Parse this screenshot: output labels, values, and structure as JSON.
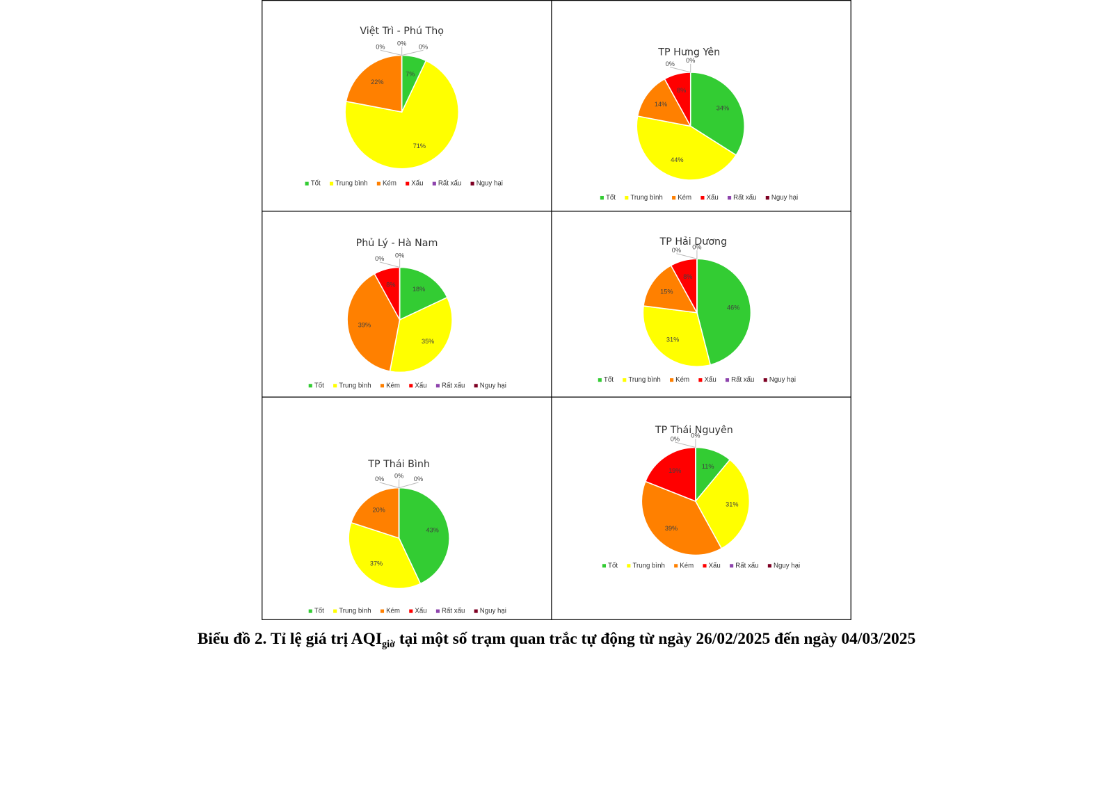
{
  "chart_data": [
    {
      "type": "pie",
      "title": "Việt Trì - Phú Thọ",
      "categories": [
        "Tốt",
        "Trung bình",
        "Kém",
        "Xấu",
        "Rất xấu",
        "Nguy hại"
      ],
      "values": [
        7,
        71,
        22,
        0,
        0,
        0
      ],
      "value_labels": [
        "7%",
        "71%",
        "22%",
        "0%",
        "0%",
        "0%"
      ],
      "colors": [
        "#33cc33",
        "#ffff00",
        "#ff8000",
        "#ff0000",
        "#8e44ad",
        "#7e0023"
      ]
    },
    {
      "type": "pie",
      "title": "TP Hưng Yên",
      "categories": [
        "Tốt",
        "Trung bình",
        "Kém",
        "Xấu",
        "Rất xấu",
        "Nguy hại"
      ],
      "values": [
        34,
        44,
        14,
        8,
        0,
        0
      ],
      "value_labels": [
        "34%",
        "44%",
        "14%",
        "8%",
        "0%",
        "0%"
      ],
      "colors": [
        "#33cc33",
        "#ffff00",
        "#ff8000",
        "#ff0000",
        "#8e44ad",
        "#7e0023"
      ]
    },
    {
      "type": "pie",
      "title": "Phủ Lý - Hà Nam",
      "categories": [
        "Tốt",
        "Trung bình",
        "Kém",
        "Xấu",
        "Rất xấu",
        "Nguy hại"
      ],
      "values": [
        18,
        35,
        39,
        8,
        0,
        0
      ],
      "value_labels": [
        "18%",
        "35%",
        "39%",
        "8%",
        "0%",
        "0%"
      ],
      "colors": [
        "#33cc33",
        "#ffff00",
        "#ff8000",
        "#ff0000",
        "#8e44ad",
        "#7e0023"
      ]
    },
    {
      "type": "pie",
      "title": "TP Hải Dương",
      "categories": [
        "Tốt",
        "Trung bình",
        "Kém",
        "Xấu",
        "Rất xấu",
        "Nguy hại"
      ],
      "values": [
        46,
        31,
        15,
        8,
        0,
        0
      ],
      "value_labels": [
        "46%",
        "31%",
        "15%",
        "8%",
        "0%",
        "0%"
      ],
      "colors": [
        "#33cc33",
        "#ffff00",
        "#ff8000",
        "#ff0000",
        "#8e44ad",
        "#7e0023"
      ]
    },
    {
      "type": "pie",
      "title": "TP Thái Bình",
      "categories": [
        "Tốt",
        "Trung bình",
        "Kém",
        "Xấu",
        "Rất xấu",
        "Nguy hại"
      ],
      "values": [
        43,
        37,
        20,
        0,
        0,
        0
      ],
      "value_labels": [
        "43%",
        "37%",
        "20%",
        "0%",
        "0%",
        "0%"
      ],
      "colors": [
        "#33cc33",
        "#ffff00",
        "#ff8000",
        "#ff0000",
        "#8e44ad",
        "#7e0023"
      ]
    },
    {
      "type": "pie",
      "title": "TP Thái Nguyên",
      "categories": [
        "Tốt",
        "Trung bình",
        "Kém",
        "Xấu",
        "Rất xấu",
        "Nguy hại"
      ],
      "values": [
        11,
        31,
        39,
        19,
        0,
        0
      ],
      "value_labels": [
        "11%",
        "31%",
        "39%",
        "19%",
        "0%",
        "0%"
      ],
      "colors": [
        "#33cc33",
        "#ffff00",
        "#ff8000",
        "#ff0000",
        "#8e44ad",
        "#7e0023"
      ]
    }
  ],
  "caption": {
    "main": "Biểu đồ 2.  Tỉ lệ giá trị AQI",
    "subscript": "giờ",
    "rest": " tại một số trạm quan trắc tự động từ ngày 26/02/2025 đến ngày 04/03/2025"
  }
}
